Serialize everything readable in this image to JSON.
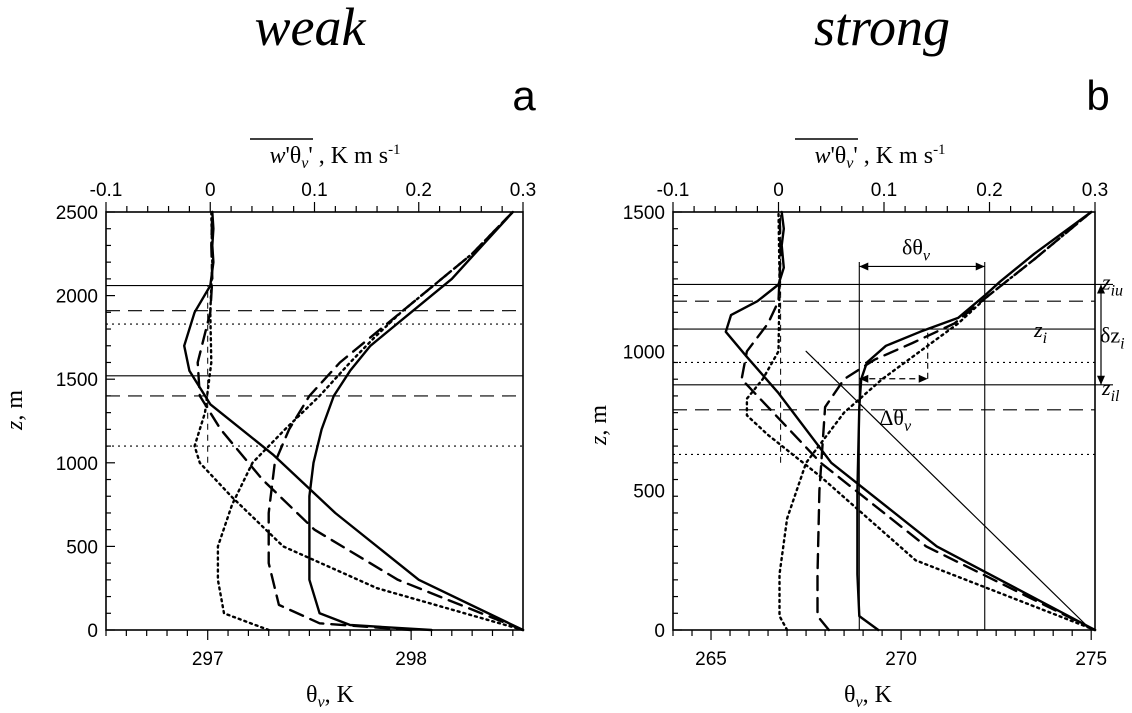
{
  "chart_data": [
    {
      "type": "line",
      "title": "weak",
      "panel": "a",
      "x_bottom": {
        "label": "θv, K",
        "lim": [
          296.5,
          298.55
        ],
        "ticks": [
          297,
          298
        ]
      },
      "x_top": {
        "label": "w'θv' , K m s-1",
        "lim": [
          -0.1,
          0.3
        ],
        "ticks": [
          "-0.1",
          "0",
          "0.1",
          "0.2",
          "0.3"
        ]
      },
      "y": {
        "label": "z, m",
        "lim": [
          0,
          2500
        ],
        "ticks": [
          0,
          500,
          1000,
          1500,
          2000,
          2500
        ]
      },
      "theta_series": [
        {
          "style": "solid",
          "x": [
            298.1,
            297.7,
            297.55,
            297.5,
            297.5,
            297.5,
            297.52,
            297.56,
            297.62,
            297.7,
            297.8,
            297.9,
            298.0,
            298.1,
            298.2,
            298.35,
            298.5
          ],
          "y": [
            0,
            30,
            100,
            300,
            500,
            800,
            1000,
            1200,
            1400,
            1550,
            1700,
            1800,
            1900,
            2000,
            2100,
            2300,
            2500
          ]
        },
        {
          "style": "dashed",
          "x": [
            298.0,
            297.55,
            297.35,
            297.3,
            297.3,
            297.33,
            297.4,
            297.5,
            297.65,
            297.8,
            297.95,
            298.1,
            298.3,
            298.5
          ],
          "y": [
            0,
            40,
            150,
            400,
            700,
            1000,
            1200,
            1400,
            1600,
            1750,
            1900,
            2050,
            2250,
            2500
          ]
        },
        {
          "style": "dotted",
          "x": [
            297.3,
            297.08,
            297.05,
            297.05,
            297.12,
            297.22,
            297.38,
            297.55,
            297.7,
            297.82,
            297.95,
            298.1,
            298.3,
            298.5
          ],
          "y": [
            0,
            100,
            300,
            500,
            750,
            1000,
            1200,
            1400,
            1600,
            1750,
            1900,
            2050,
            2250,
            2500
          ]
        }
      ],
      "flux_series": [
        {
          "style": "solid",
          "x": [
            0.3,
            0.2,
            0.12,
            0.06,
            0.0,
            -0.02,
            -0.025,
            -0.015,
            0.0,
            0.003,
            0.002,
            0.003,
            0.002
          ],
          "y": [
            0,
            300,
            700,
            1050,
            1350,
            1550,
            1700,
            1900,
            2060,
            2200,
            2300,
            2400,
            2500
          ]
        },
        {
          "style": "dashed",
          "x": [
            0.3,
            0.18,
            0.1,
            0.05,
            0.01,
            -0.01,
            -0.012,
            0.0,
            0.002,
            0.001,
            0.002
          ],
          "y": [
            0,
            300,
            600,
            900,
            1200,
            1400,
            1600,
            1900,
            2100,
            2300,
            2500
          ]
        },
        {
          "style": "dotted",
          "x": [
            0.3,
            0.16,
            0.07,
            0.02,
            -0.01,
            -0.015,
            -0.005,
            0.001,
            0.0,
            0.002,
            0.001
          ],
          "y": [
            0,
            250,
            500,
            800,
            1000,
            1100,
            1300,
            1600,
            1900,
            2200,
            2500
          ]
        }
      ],
      "h_lines": [
        {
          "style": "solid",
          "y": 2060
        },
        {
          "style": "solid",
          "y": 1520
        },
        {
          "style": "dashed",
          "y": 1910
        },
        {
          "style": "dashed",
          "y": 1400
        },
        {
          "style": "dotted",
          "y": 1830
        },
        {
          "style": "dotted",
          "y": 1100
        }
      ],
      "ref_v_dashed": {
        "x": 297.0,
        "y": [
          1000,
          2060
        ]
      }
    },
    {
      "type": "line",
      "title": "strong",
      "panel": "b",
      "x_bottom": {
        "label": "θv, K",
        "lim": [
          264.0,
          275.1
        ],
        "ticks": [
          265,
          270,
          275
        ]
      },
      "x_top": {
        "label": "w'θv' , K m s-1",
        "lim": [
          -0.1,
          0.3
        ],
        "ticks": [
          "-0.1",
          "0",
          "0.1",
          "0.2",
          "0.3"
        ]
      },
      "y": {
        "label": "z, m",
        "lim": [
          0,
          1500
        ],
        "ticks": [
          0,
          500,
          1000,
          1500
        ]
      },
      "theta_series": [
        {
          "style": "solid",
          "x": [
            269.4,
            268.9,
            268.85,
            268.85,
            268.9,
            268.95,
            269.1,
            269.6,
            270.5,
            271.5,
            272.2,
            272.6,
            273.5,
            275.0
          ],
          "y": [
            0,
            50,
            200,
            500,
            800,
            900,
            960,
            1020,
            1070,
            1120,
            1200,
            1250,
            1350,
            1500
          ]
        },
        {
          "style": "dashed",
          "x": [
            268.1,
            267.8,
            267.8,
            267.85,
            268.0,
            268.5,
            269.3,
            270.3,
            271.4,
            272.3,
            273.5,
            275.0
          ],
          "y": [
            0,
            50,
            200,
            500,
            800,
            900,
            970,
            1030,
            1100,
            1200,
            1330,
            1500
          ]
        },
        {
          "style": "dotted",
          "x": [
            267.0,
            266.8,
            266.8,
            267.0,
            267.5,
            268.5,
            269.5,
            270.5,
            271.5,
            272.3,
            273.5,
            275.0
          ],
          "y": [
            0,
            50,
            200,
            400,
            600,
            780,
            900,
            1000,
            1100,
            1200,
            1330,
            1500
          ]
        }
      ],
      "theta_diag": {
        "x": [
          275.0,
          273.5,
          272.0,
          270.5,
          269.0,
          267.5
        ],
        "y": [
          0,
          200,
          400,
          600,
          800,
          1000
        ]
      },
      "flux_series": [
        {
          "style": "solid",
          "x": [
            0.3,
            0.15,
            0.05,
            0.0,
            -0.03,
            -0.05,
            -0.045,
            -0.02,
            0.0,
            0.005,
            0.003,
            0.005,
            0.003
          ],
          "y": [
            0,
            300,
            600,
            850,
            980,
            1070,
            1130,
            1180,
            1240,
            1300,
            1380,
            1440,
            1500
          ]
        },
        {
          "style": "dashed",
          "x": [
            0.3,
            0.14,
            0.04,
            -0.01,
            -0.035,
            -0.03,
            -0.01,
            0.0,
            0.002,
            0.001
          ],
          "y": [
            0,
            300,
            600,
            800,
            900,
            1000,
            1100,
            1180,
            1350,
            1500
          ]
        },
        {
          "style": "dotted",
          "x": [
            0.3,
            0.13,
            0.04,
            -0.01,
            -0.03,
            -0.03,
            -0.015,
            0.0,
            0.001,
            0.0
          ],
          "y": [
            0,
            250,
            550,
            700,
            770,
            830,
            900,
            1000,
            1250,
            1500
          ]
        }
      ],
      "flux_ref_dashed": {
        "x": 0.002,
        "y": [
          600,
          1500
        ]
      },
      "h_lines": [
        {
          "style": "solid",
          "y": 1240
        },
        {
          "style": "solid",
          "y": 1080
        },
        {
          "style": "solid",
          "y": 880
        },
        {
          "style": "dashed",
          "y": 1180
        },
        {
          "style": "dashed",
          "y": 790
        },
        {
          "style": "dotted",
          "y": 960
        },
        {
          "style": "dotted",
          "y": 630
        }
      ],
      "v_lines": [
        268.9,
        272.2
      ],
      "annotations": {
        "delta_theta": "δθv",
        "Delta_theta": "Δθv",
        "z_iu": "ziu",
        "z_i": "zi",
        "z_il": "zil",
        "delta_z": "δzi"
      }
    }
  ]
}
